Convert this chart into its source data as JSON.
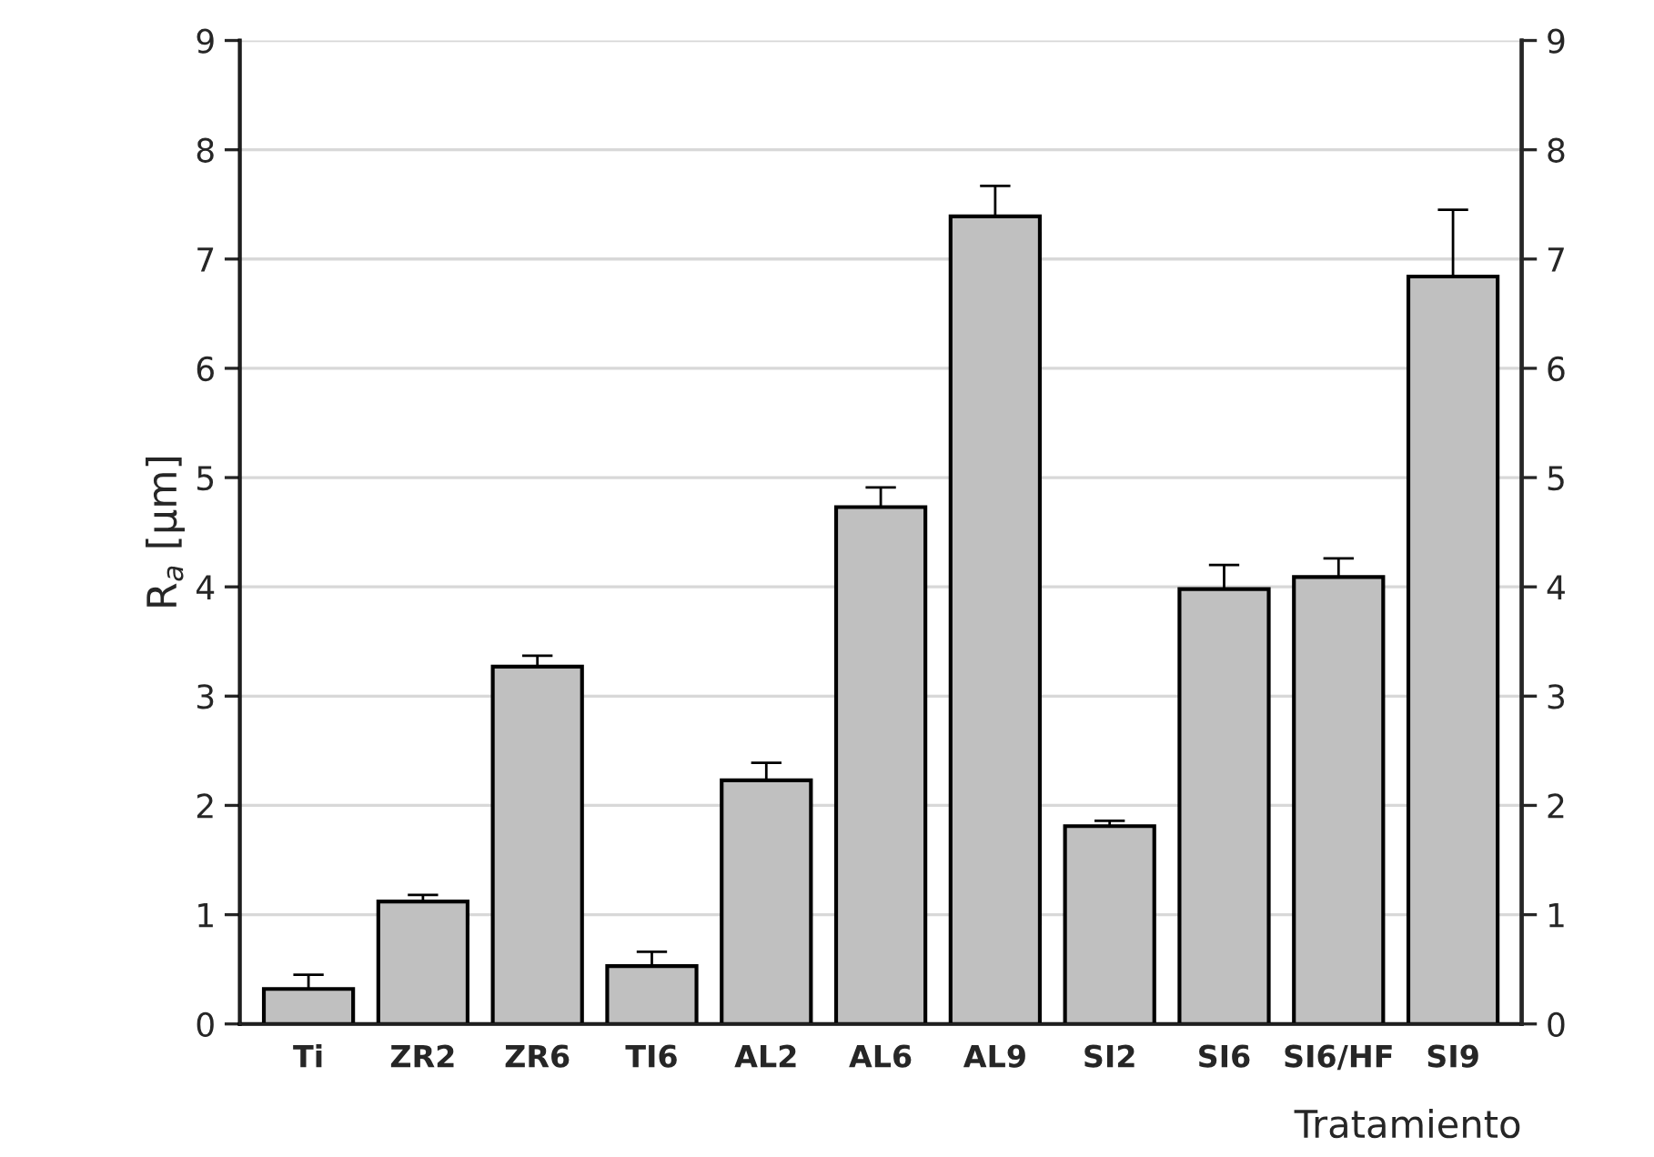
{
  "chart_data": {
    "type": "bar",
    "categories": [
      "Ti",
      "ZR2",
      "ZR6",
      "TI6",
      "AL2",
      "AL6",
      "AL9",
      "SI2",
      "SI6",
      "SI6/HF",
      "SI9"
    ],
    "values": [
      0.32,
      1.12,
      3.27,
      0.53,
      2.23,
      4.73,
      7.39,
      1.81,
      3.98,
      4.09,
      6.84
    ],
    "errors": [
      [
        0.32,
        0.45
      ],
      [
        1.12,
        1.18
      ],
      [
        3.27,
        3.37
      ],
      [
        0.53,
        0.66
      ],
      [
        2.23,
        2.39
      ],
      [
        4.73,
        4.91
      ],
      [
        7.39,
        7.67
      ],
      [
        1.81,
        1.86
      ],
      [
        3.98,
        4.2
      ],
      [
        4.09,
        4.26
      ],
      [
        6.84,
        7.45
      ]
    ],
    "color": "#c0c0c0",
    "xlabel": "Tratamiento",
    "ylabel": "R$_{a}$ [μm]",
    "ylim": [
      0,
      9
    ],
    "yticks": [
      0,
      1,
      2,
      3,
      4,
      5,
      6,
      7,
      8,
      9
    ],
    "y2lim": [
      0,
      9
    ],
    "y2ticks": [
      0,
      1,
      2,
      3,
      4,
      5,
      6,
      7,
      8,
      9
    ],
    "grid": "y"
  }
}
